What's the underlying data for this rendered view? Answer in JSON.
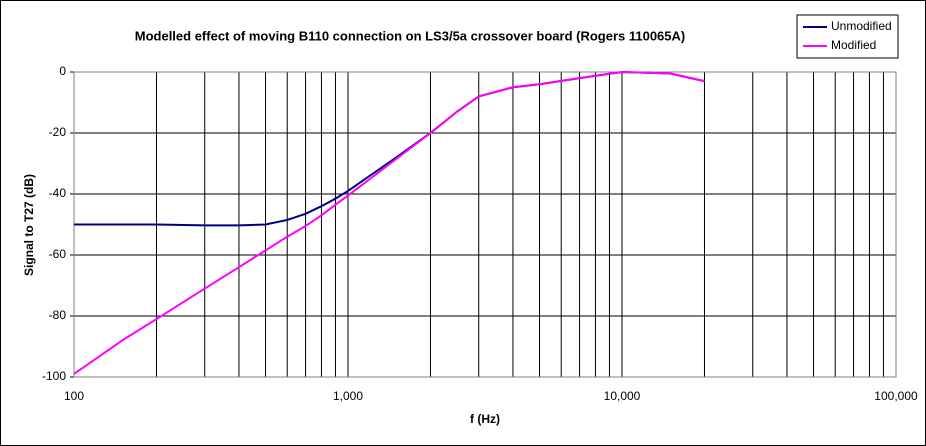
{
  "chart_data": {
    "type": "line",
    "title": "Modelled effect of moving B110 connection on LS3/5a crossover board (Rogers 110065A)",
    "xlabel": "f (Hz)",
    "ylabel": "Signal to T27 (dB)",
    "x": [
      100,
      150,
      200,
      300,
      400,
      500,
      600,
      700,
      800,
      900,
      1000,
      1500,
      2000,
      2500,
      3000,
      4000,
      5000,
      7000,
      10000,
      15000,
      20000
    ],
    "series": [
      {
        "name": "Unmodified",
        "color": "#000080",
        "values": [
          -50,
          -50,
          -50,
          -50.3,
          -50.3,
          -50,
          -48.5,
          -46.5,
          -44,
          -41.5,
          -39,
          -28,
          -20,
          -13,
          -8,
          -5,
          -4,
          -2,
          0,
          -0.5,
          -3
        ]
      },
      {
        "name": "Modified",
        "color": "#ff00ff",
        "values": [
          -99,
          -88,
          -81,
          -71,
          -64,
          -58.5,
          -54,
          -50.5,
          -47,
          -43.5,
          -40.5,
          -28.5,
          -20,
          -13,
          -8,
          -5,
          -4,
          -2,
          0,
          -0.5,
          -3
        ]
      }
    ],
    "xlim": [
      100,
      100000
    ],
    "ylim": [
      -100,
      0
    ],
    "xticks": [
      100,
      {
        "value": 1000,
        "label": "1,000"
      },
      {
        "value": 10000,
        "label": "10,000"
      },
      {
        "value": 100000,
        "label": "100,000"
      }
    ],
    "yticks": [
      -100,
      -80,
      -60,
      -40,
      -20,
      0
    ],
    "xscale": "log",
    "grid": true,
    "legend": "top-right"
  }
}
